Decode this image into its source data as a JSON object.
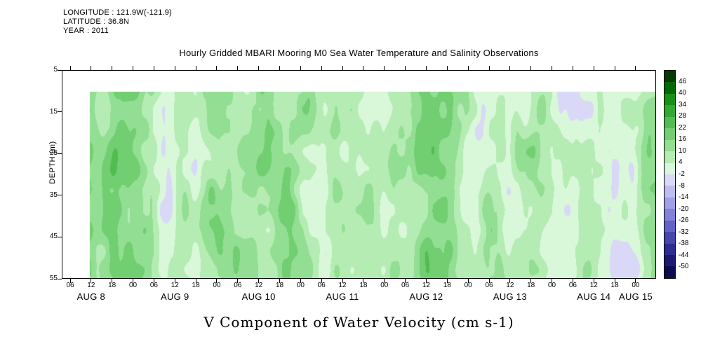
{
  "header": {
    "longitude": "LONGITUDE : 121.9W(-121.9)",
    "latitude": "LATITUDE : 36.8N",
    "year": "YEAR : 2011",
    "title": "Hourly Gridded MBARI Mooring M0 Sea Water Temperature and Salinity Observations"
  },
  "chart_data": {
    "type": "heatmap",
    "title": "Hourly Gridded MBARI Mooring M0 Sea Water Temperature and Salinity Observations",
    "xlabel": "V Component of Water Velocity (cm s-1)",
    "ylabel": "DEPTH (m)",
    "y_ticks": [
      5,
      15,
      25,
      35,
      45,
      55
    ],
    "y_range": [
      5,
      55
    ],
    "x_hour_labels": [
      "06",
      "12",
      "18",
      "00",
      "06",
      "12",
      "18",
      "00",
      "06",
      "12",
      "18",
      "00",
      "06",
      "12",
      "18",
      "00",
      "06",
      "12",
      "18",
      "00",
      "06",
      "12",
      "18",
      "00",
      "06",
      "12",
      "18",
      "00"
    ],
    "x_date_labels": [
      "AUG 8",
      "AUG 9",
      "AUG 10",
      "AUG 11",
      "AUG 12",
      "AUG 13",
      "AUG 14",
      "AUG 15"
    ],
    "colorbar_levels": [
      46,
      40,
      34,
      28,
      22,
      16,
      10,
      4,
      -2,
      -8,
      -14,
      -20,
      -26,
      -32,
      -38,
      -44,
      -50
    ],
    "colorbar_colors": [
      "#013b01",
      "#026a02",
      "#169116",
      "#33a833",
      "#52bc52",
      "#71cf71",
      "#92de92",
      "#b4ecb4",
      "#d9f7d9",
      "#d9d9f7",
      "#bdbdf0",
      "#a0a0e6",
      "#8282d8",
      "#6363c6",
      "#4646ad",
      "#2d2d8f",
      "#1a1a6e",
      "#0b0b4d"
    ],
    "legend_position": "right",
    "grid": false,
    "field_note": "Hourly gridded v-component of water velocity (cm/s) versus depth (10-55 m) and time (Aug 8 12:00 - Aug 15 06:00, 2011); mostly positive values 0 to +22 (greens) with intermittent vertical bands of negative values to about -14 (lavender/blue).",
    "typical_value_range": [
      -14,
      22
    ]
  },
  "footer": {
    "caption": "V Component of Water Velocity (cm s-1)"
  }
}
